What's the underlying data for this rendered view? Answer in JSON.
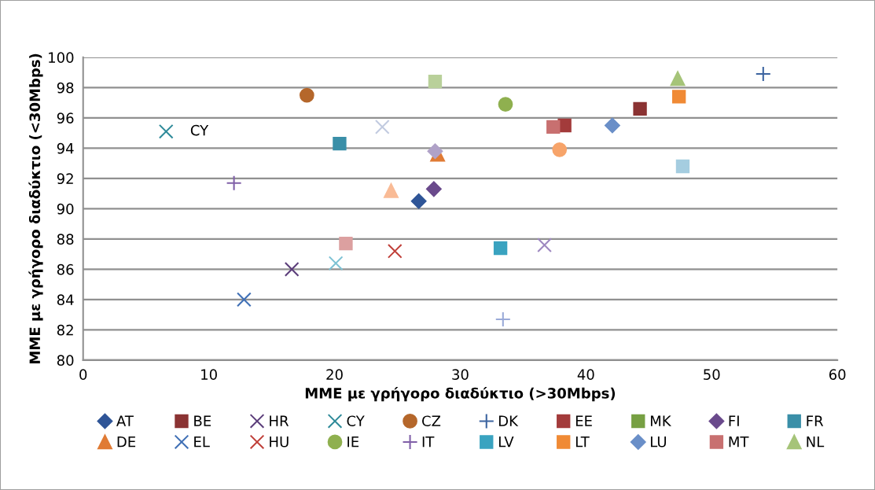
{
  "chart_data": {
    "type": "scatter",
    "xlabel": "ΜΜΕ με γρήγορο διαδύκτιο (>30Mbps)",
    "ylabel": "ΜΜΕ με γρήγορο διαδύκτιο (<30Mbps)",
    "xlim": [
      0,
      60
    ],
    "xticks": [
      0,
      10,
      20,
      30,
      40,
      50,
      60
    ],
    "ylim": [
      80,
      100
    ],
    "yticks": [
      80,
      82,
      84,
      86,
      88,
      90,
      92,
      94,
      96,
      98,
      100
    ],
    "grid": "y",
    "legend": "bottom",
    "annotations": [
      {
        "text": "CY",
        "x": 6.6,
        "y": 95.1
      }
    ],
    "series": [
      {
        "name": "AT",
        "color": "#2f5597",
        "marker": "diamond",
        "x": [
          26.7
        ],
        "values": [
          90.5
        ]
      },
      {
        "name": "BE",
        "color": "#8b3333",
        "marker": "square",
        "x": [
          44.3
        ],
        "values": [
          96.6
        ]
      },
      {
        "name": "HR",
        "color": "#5b3d7a",
        "marker": "cross",
        "x": [
          16.6
        ],
        "values": [
          86.0
        ]
      },
      {
        "name": "CY",
        "color": "#2e8a99",
        "marker": "cross",
        "x": [
          6.6
        ],
        "values": [
          95.1
        ]
      },
      {
        "name": "CZ",
        "color": "#b5672b",
        "marker": "circle",
        "x": [
          17.8
        ],
        "values": [
          97.5
        ]
      },
      {
        "name": "DK",
        "color": "#3c64a0",
        "marker": "plus",
        "x": [
          54.1
        ],
        "values": [
          98.9
        ]
      },
      {
        "name": "EE",
        "color": "#a33b3b",
        "marker": "square",
        "x": [
          38.3
        ],
        "values": [
          95.5
        ]
      },
      {
        "name": "MK",
        "color": "#77a043",
        "marker": "square"
      },
      {
        "name": "FI",
        "color": "#6a4a8c",
        "marker": "diamond",
        "x": [
          27.9
        ],
        "values": [
          91.3
        ]
      },
      {
        "name": "FR",
        "color": "#3a8fa8",
        "marker": "square",
        "x": [
          20.4
        ],
        "values": [
          94.3
        ]
      },
      {
        "name": "DE",
        "color": "#e07b35",
        "marker": "triangle",
        "x": [
          28.2
        ],
        "values": [
          93.6
        ]
      },
      {
        "name": "EL",
        "color": "#3f6fb5",
        "marker": "cross",
        "x": [
          12.8
        ],
        "values": [
          84.0
        ]
      },
      {
        "name": "HU",
        "color": "#c0403a",
        "marker": "cross",
        "x": [
          24.8
        ],
        "values": [
          87.2
        ]
      },
      {
        "name": "IE",
        "color": "#8fb04f",
        "marker": "circle",
        "x": [
          33.6
        ],
        "values": [
          96.9
        ]
      },
      {
        "name": "IT",
        "color": "#8060a8",
        "marker": "plus",
        "x": [
          12.0
        ],
        "values": [
          91.7
        ]
      },
      {
        "name": "LV",
        "color": "#3aa3c0",
        "marker": "square",
        "x": [
          33.2
        ],
        "values": [
          87.4
        ]
      },
      {
        "name": "LT",
        "color": "#f08a35",
        "marker": "square",
        "x": [
          47.4
        ],
        "values": [
          97.4
        ]
      },
      {
        "name": "LU",
        "color": "#6a8fc8",
        "marker": "diamond",
        "x": [
          42.1
        ],
        "values": [
          95.5
        ]
      },
      {
        "name": "MT",
        "color": "#c87070",
        "marker": "square",
        "x": [
          37.4
        ],
        "values": [
          95.4
        ]
      },
      {
        "name": "NL",
        "color": "#a6c479",
        "marker": "triangle",
        "x": [
          47.3
        ],
        "values": [
          98.6
        ]
      },
      {
        "color": "#b9d09a",
        "marker": "square",
        "x": [
          28.0
        ],
        "values": [
          98.4
        ]
      },
      {
        "color": "#a5cde0",
        "marker": "square",
        "x": [
          47.7
        ],
        "values": [
          92.8
        ]
      },
      {
        "color": "#c2cbe0",
        "marker": "cross",
        "x": [
          23.8
        ],
        "values": [
          95.4
        ]
      },
      {
        "color": "#f9bb96",
        "marker": "triangle",
        "x": [
          24.5
        ],
        "values": [
          91.2
        ]
      },
      {
        "color": "#dca0a0",
        "marker": "square",
        "x": [
          20.9
        ],
        "values": [
          87.7
        ]
      },
      {
        "color": "#7dc2d4",
        "marker": "cross",
        "x": [
          20.1
        ],
        "values": [
          86.4
        ]
      },
      {
        "color": "#9aaad8",
        "marker": "plus",
        "x": [
          33.4
        ],
        "values": [
          82.7
        ]
      },
      {
        "color": "#b0a2c8",
        "marker": "diamond",
        "x": [
          28.0
        ],
        "values": [
          93.8
        ]
      },
      {
        "color": "#f7a46a",
        "marker": "circle",
        "x": [
          37.9
        ],
        "values": [
          93.9
        ]
      },
      {
        "color": "#9e88c0",
        "marker": "cross",
        "x": [
          36.7
        ],
        "values": [
          87.6
        ]
      }
    ]
  }
}
